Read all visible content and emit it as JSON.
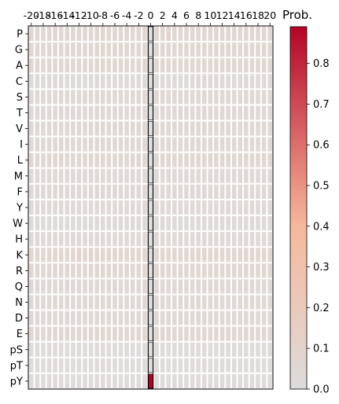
{
  "chart_data": {
    "type": "heatmap",
    "x": [
      -20,
      -19,
      -18,
      -17,
      -16,
      -15,
      -14,
      -13,
      -12,
      -11,
      -10,
      -9,
      -8,
      -7,
      -6,
      -5,
      -4,
      -3,
      -2,
      -1,
      0,
      1,
      2,
      3,
      4,
      5,
      6,
      7,
      8,
      9,
      10,
      11,
      12,
      13,
      14,
      15,
      16,
      17,
      18,
      19,
      20
    ],
    "xticks": [
      -20,
      -18,
      -16,
      -14,
      -12,
      -10,
      -8,
      -6,
      -4,
      -2,
      0,
      2,
      4,
      6,
      8,
      10,
      12,
      14,
      16,
      18,
      20
    ],
    "y": [
      "P",
      "G",
      "A",
      "C",
      "S",
      "T",
      "V",
      "I",
      "L",
      "M",
      "F",
      "Y",
      "W",
      "H",
      "K",
      "R",
      "Q",
      "N",
      "D",
      "E",
      "pS",
      "pT",
      "pY"
    ],
    "row_levels": {
      "P": 0.06,
      "G": 0.06,
      "A": 0.06,
      "C": 0.02,
      "S": 0.05,
      "T": 0.04,
      "V": 0.05,
      "I": 0.045,
      "L": 0.06,
      "M": 0.03,
      "F": 0.04,
      "Y": 0.03,
      "W": 0.02,
      "H": 0.025,
      "K": 0.07,
      "R": 0.06,
      "Q": 0.04,
      "N": 0.035,
      "D": 0.04,
      "E": 0.06,
      "pS": 0.015,
      "pT": 0.01,
      "pY": 0.01
    },
    "overrides": [
      {
        "y": "P",
        "x": 3,
        "value": 0.1
      },
      {
        "y": "K",
        "x": -12,
        "value": 0.1
      },
      {
        "y": "K",
        "x": -10,
        "value": 0.1
      },
      {
        "y": "pY",
        "x": 0,
        "value": 0.89
      }
    ],
    "highlight_column": 0,
    "highlight_column_value": 0.0,
    "colorbar": {
      "title": "Prob.",
      "range": [
        0.0,
        0.89
      ],
      "ticks": [
        "0.0",
        "0.1",
        "0.2",
        "0.3",
        "0.4",
        "0.5",
        "0.6",
        "0.7",
        "0.8"
      ],
      "colors": [
        "#dddcdc",
        "#f7b89c",
        "#b40426"
      ]
    }
  }
}
